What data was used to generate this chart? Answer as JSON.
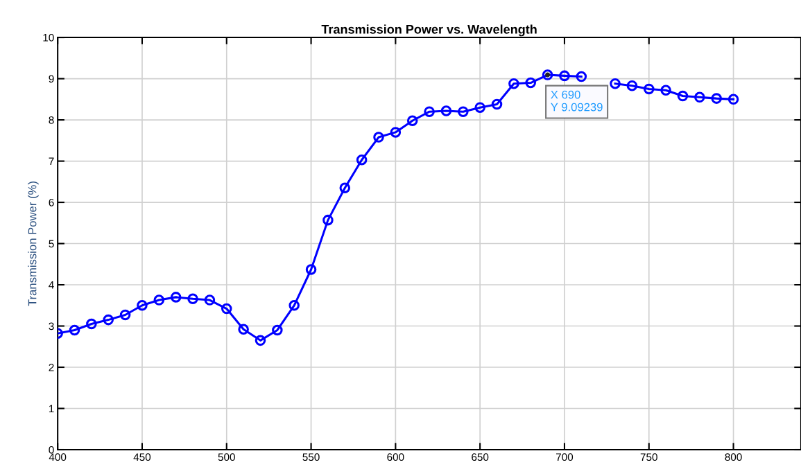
{
  "chart_data": {
    "type": "line",
    "title": "Transmission Power vs. Wavelength",
    "ylabel": "Transmission Power (%)",
    "x": [
      400,
      410,
      420,
      430,
      440,
      450,
      460,
      470,
      480,
      490,
      500,
      510,
      520,
      530,
      540,
      550,
      560,
      570,
      580,
      590,
      600,
      610,
      620,
      630,
      640,
      650,
      660,
      670,
      680,
      690,
      700,
      710,
      720,
      730,
      740,
      750,
      760,
      770,
      780,
      790,
      800
    ],
    "series": [
      {
        "color": "#0000ff",
        "values": [
          2.82,
          2.9,
          3.05,
          3.15,
          3.27,
          3.5,
          3.63,
          3.7,
          3.66,
          3.63,
          3.42,
          2.92,
          2.65,
          2.9,
          3.5,
          4.37,
          5.57,
          6.35,
          7.03,
          7.58,
          7.7,
          7.98,
          8.2,
          8.22,
          8.2,
          8.3,
          8.38,
          8.88,
          8.9,
          9.09239,
          9.07,
          9.05,
          null,
          8.88,
          8.83,
          8.75,
          8.72,
          8.58,
          8.55,
          8.52,
          8.5
        ]
      }
    ],
    "annotations": [
      {
        "text": "X 690\nY 9.09239",
        "x": 690,
        "y": 9.09239
      }
    ],
    "xlim": [
      400,
      840
    ],
    "xticks": [
      400,
      450,
      500,
      550,
      600,
      650,
      700,
      750,
      800
    ],
    "ylim": [
      0,
      10
    ],
    "yticks": [
      0,
      1,
      2,
      3,
      4,
      5,
      6,
      7,
      8,
      9,
      10
    ],
    "grid": true,
    "marker": "circle",
    "line_style": "solid"
  }
}
